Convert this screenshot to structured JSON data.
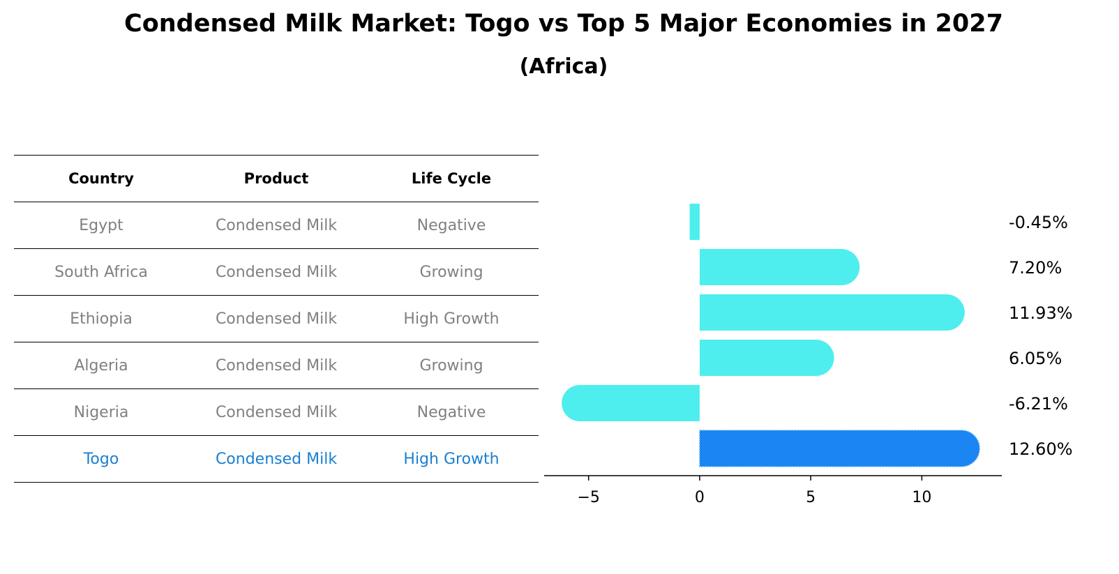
{
  "title": "Condensed Milk Market: Togo vs Top 5 Major Economies in 2027",
  "subtitle": "(Africa)",
  "table": {
    "headers": [
      "Country",
      "Product",
      "Life Cycle"
    ],
    "rows": [
      [
        "Egypt",
        "Condensed Milk",
        "Negative"
      ],
      [
        "South Africa",
        "Condensed Milk",
        "Growing"
      ],
      [
        "Ethiopia",
        "Condensed Milk",
        "High Growth"
      ],
      [
        "Algeria",
        "Condensed Milk",
        "Growing"
      ],
      [
        "Nigeria",
        "Condensed Milk",
        "Negative"
      ],
      [
        "Togo",
        "Condensed Milk",
        "High Growth"
      ]
    ]
  },
  "colors": {
    "bar": "#4eeeee",
    "highlight": "#1a85f3",
    "highlight_text": "#1a7fd1",
    "muted_text": "#808080"
  },
  "chart_data": {
    "type": "bar",
    "orientation": "horizontal",
    "categories": [
      "Egypt",
      "South Africa",
      "Ethiopia",
      "Algeria",
      "Nigeria",
      "Togo"
    ],
    "values": [
      -0.45,
      7.2,
      11.93,
      6.05,
      -6.21,
      12.6
    ],
    "value_labels": [
      "-0.45%",
      "7.20%",
      "11.93%",
      "6.05%",
      "-6.21%",
      "12.60%"
    ],
    "highlight": "Togo",
    "xlim": [
      -7,
      13.6
    ],
    "xticks": [
      -5,
      0,
      5,
      10
    ],
    "xtick_labels": [
      "−5",
      "0",
      "5",
      "10"
    ],
    "xlabel": "",
    "ylabel": "",
    "grid": false
  }
}
